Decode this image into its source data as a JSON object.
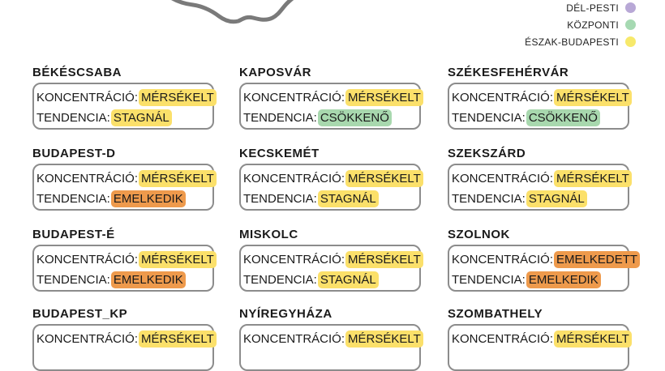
{
  "legend": [
    {
      "label": "DÉL-PESTI",
      "color": "#b8a8d6"
    },
    {
      "label": "KÖZPONTI",
      "color": "#a6d9b2"
    },
    {
      "label": "ÉSZAK-BUDAPESTI",
      "color": "#f7e96b"
    }
  ],
  "colors": {
    "MÉRSÉKELT": "#fbe06a",
    "STAGNÁL": "#fbe06a",
    "CSÖKKENŐ": "#a8d8ae",
    "EMELKEDIK": "#ee9a4c",
    "EMELKEDETT": "#ee9a4c"
  },
  "labels": {
    "concentration": "KONCENTRÁCIÓ:",
    "trend": "TENDENCIA:"
  },
  "cards": [
    {
      "city": "BÉKÉSCSABA",
      "concentration": "MÉRSÉKELT",
      "trend": "STAGNÁL"
    },
    {
      "city": "KAPOSVÁR",
      "concentration": "MÉRSÉKELT",
      "trend": "CSÖKKENŐ"
    },
    {
      "city": "SZÉKESFEHÉRVÁR",
      "concentration": "MÉRSÉKELT",
      "trend": "CSÖKKENŐ"
    },
    {
      "city": "BUDAPEST-D",
      "concentration": "MÉRSÉKELT",
      "trend": "EMELKEDIK"
    },
    {
      "city": "KECSKEMÉT",
      "concentration": "MÉRSÉKELT",
      "trend": "STAGNÁL"
    },
    {
      "city": "SZEKSZÁRD",
      "concentration": "MÉRSÉKELT",
      "trend": "STAGNÁL"
    },
    {
      "city": "BUDAPEST-É",
      "concentration": "MÉRSÉKELT",
      "trend": "EMELKEDIK"
    },
    {
      "city": "MISKOLC",
      "concentration": "MÉRSÉKELT",
      "trend": "STAGNÁL"
    },
    {
      "city": "SZOLNOK",
      "concentration": "EMELKEDETT",
      "trend": "EMELKEDIK"
    },
    {
      "city": "BUDAPEST_KP",
      "concentration": "MÉRSÉKELT",
      "trend": ""
    },
    {
      "city": "NYÍREGYHÁZA",
      "concentration": "MÉRSÉKELT",
      "trend": ""
    },
    {
      "city": "SZOMBATHELY",
      "concentration": "MÉRSÉKELT",
      "trend": ""
    }
  ]
}
